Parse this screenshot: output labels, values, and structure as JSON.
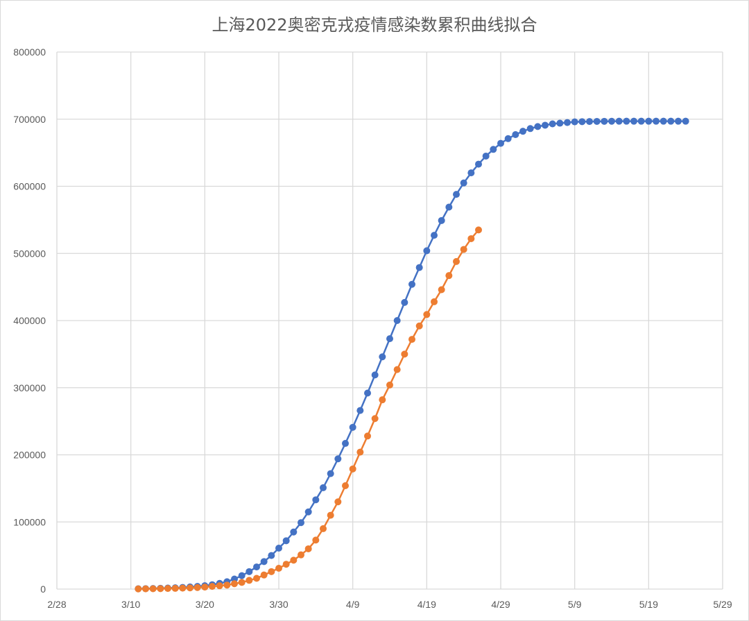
{
  "chart_data": {
    "type": "line",
    "title": "上海2022奥密克戎疫情感染数累积曲线拟合",
    "xlabel": "",
    "ylabel": "",
    "ylim": [
      0,
      800000
    ],
    "yticks": [
      "0",
      "100000",
      "200000",
      "300000",
      "400000",
      "500000",
      "600000",
      "700000",
      "800000"
    ],
    "xlim": [
      "2/28",
      "5/29"
    ],
    "xticks": [
      "2/28",
      "3/10",
      "3/20",
      "3/30",
      "4/9",
      "4/19",
      "4/29",
      "5/9",
      "5/19",
      "5/29"
    ],
    "grid": true,
    "markers": true,
    "series": [
      {
        "color": "#4472C4",
        "x": [
          "3/11",
          "3/12",
          "3/13",
          "3/14",
          "3/15",
          "3/16",
          "3/17",
          "3/18",
          "3/19",
          "3/20",
          "3/21",
          "3/22",
          "3/23",
          "3/24",
          "3/25",
          "3/26",
          "3/27",
          "3/28",
          "3/29",
          "3/30",
          "3/31",
          "4/1",
          "4/2",
          "4/3",
          "4/4",
          "4/5",
          "4/6",
          "4/7",
          "4/8",
          "4/9",
          "4/10",
          "4/11",
          "4/12",
          "4/13",
          "4/14",
          "4/15",
          "4/16",
          "4/17",
          "4/18",
          "4/19",
          "4/20",
          "4/21",
          "4/22",
          "4/23",
          "4/24",
          "4/25",
          "4/26",
          "4/27",
          "4/28",
          "4/29",
          "4/30",
          "5/1",
          "5/2",
          "5/3",
          "5/4",
          "5/5",
          "5/6",
          "5/7",
          "5/8",
          "5/9",
          "5/10",
          "5/11",
          "5/12",
          "5/13",
          "5/14",
          "5/15",
          "5/16",
          "5/17",
          "5/18",
          "5/19",
          "5/20",
          "5/21",
          "5/22",
          "5/23",
          "5/24"
        ],
        "values": [
          500,
          700,
          900,
          1200,
          1500,
          1900,
          2500,
          3200,
          4000,
          5000,
          6500,
          8500,
          11000,
          15000,
          20000,
          26000,
          33000,
          41000,
          50000,
          61000,
          72000,
          85000,
          99000,
          115000,
          133000,
          151000,
          172000,
          194000,
          217000,
          241000,
          266000,
          292000,
          319000,
          346000,
          373000,
          400000,
          427000,
          454000,
          479000,
          504000,
          527000,
          549000,
          569000,
          588000,
          605000,
          620000,
          633000,
          645000,
          655000,
          664000,
          671000,
          677000,
          682000,
          686000,
          689000,
          691000,
          693000,
          694000,
          695000,
          696000,
          696300,
          696500,
          696700,
          696800,
          696900,
          697000,
          697000,
          697000,
          697000,
          697000,
          697000,
          697000,
          697000,
          697000,
          697000
        ]
      },
      {
        "color": "#ED7D31",
        "x": [
          "3/11",
          "3/12",
          "3/13",
          "3/14",
          "3/15",
          "3/16",
          "3/17",
          "3/18",
          "3/19",
          "3/20",
          "3/21",
          "3/22",
          "3/23",
          "3/24",
          "3/25",
          "3/26",
          "3/27",
          "3/28",
          "3/29",
          "3/30",
          "3/31",
          "4/1",
          "4/2",
          "4/3",
          "4/4",
          "4/5",
          "4/6",
          "4/7",
          "4/8",
          "4/9",
          "4/10",
          "4/11",
          "4/12",
          "4/13",
          "4/14",
          "4/15",
          "4/16",
          "4/17",
          "4/18",
          "4/19",
          "4/20",
          "4/21",
          "4/22",
          "4/23",
          "4/24",
          "4/25",
          "4/26"
        ],
        "values": [
          300,
          400,
          500,
          700,
          900,
          1100,
          1400,
          1800,
          2300,
          3000,
          4000,
          5000,
          6000,
          8000,
          10000,
          13000,
          16000,
          21000,
          26000,
          31000,
          37000,
          43000,
          51000,
          60000,
          73000,
          90000,
          110000,
          130000,
          154000,
          179000,
          204000,
          228000,
          254000,
          282000,
          304000,
          327000,
          350000,
          372000,
          392000,
          409000,
          428000,
          446000,
          467000,
          488000,
          506000,
          522000,
          535000
        ]
      }
    ]
  }
}
